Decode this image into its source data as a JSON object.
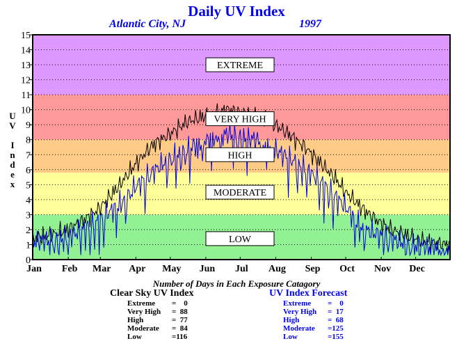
{
  "title": "Daily UV Index",
  "location": "Atlantic City, NJ",
  "year": "1997",
  "y_axis_label": "UV Index",
  "chart_data": {
    "type": "line",
    "y_range": [
      0,
      15
    ],
    "y_ticks": [
      "0",
      "1",
      "2",
      "3",
      "4",
      "5",
      "6",
      "7",
      "8",
      "9",
      "10",
      "11",
      "12",
      "13",
      "14",
      "15"
    ],
    "x_range_days": [
      1,
      365
    ],
    "x_ticks": [
      "Jan",
      "Feb",
      "Mar",
      "Apr",
      "May",
      "Jun",
      "Jul",
      "Aug",
      "Sep",
      "Oct",
      "Nov",
      "Dec"
    ],
    "grid": true,
    "bands": [
      {
        "label": "LOW",
        "from": 0,
        "to": 3,
        "color": "#92f192"
      },
      {
        "label": "MODERATE",
        "from": 3,
        "to": 5.8,
        "color": "#ffff99"
      },
      {
        "label": "HIGH",
        "from": 5.8,
        "to": 8,
        "color": "#ffcc88"
      },
      {
        "label": "VERY HIGH",
        "from": 8,
        "to": 11,
        "color": "#ff9999"
      },
      {
        "label": "EXTREME",
        "from": 11,
        "to": 15,
        "color": "#dd99ff"
      }
    ],
    "series": [
      {
        "name": "Clear Sky UV Index",
        "color": "#000000",
        "keypoints": [
          [
            1,
            1.4
          ],
          [
            15,
            1.6
          ],
          [
            31,
            2.0
          ],
          [
            45,
            2.6
          ],
          [
            59,
            3.4
          ],
          [
            75,
            4.8
          ],
          [
            90,
            6.3
          ],
          [
            105,
            7.6
          ],
          [
            121,
            8.4
          ],
          [
            136,
            9.2
          ],
          [
            152,
            9.6
          ],
          [
            165,
            9.9
          ],
          [
            172,
            10.0
          ],
          [
            182,
            9.8
          ],
          [
            196,
            9.5
          ],
          [
            210,
            9.1
          ],
          [
            224,
            8.4
          ],
          [
            240,
            7.4
          ],
          [
            255,
            6.2
          ],
          [
            265,
            5.4
          ],
          [
            274,
            4.5
          ],
          [
            290,
            3.3
          ],
          [
            305,
            2.4
          ],
          [
            320,
            1.8
          ],
          [
            335,
            1.4
          ],
          [
            350,
            1.1
          ],
          [
            365,
            1.0
          ]
        ]
      },
      {
        "name": "UV Index Forecast",
        "color": "#0000dd",
        "keypoints": [
          [
            1,
            1.2
          ],
          [
            15,
            1.3
          ],
          [
            31,
            1.5
          ],
          [
            45,
            2.0
          ],
          [
            59,
            2.6
          ],
          [
            75,
            3.6
          ],
          [
            90,
            4.8
          ],
          [
            105,
            5.8
          ],
          [
            121,
            6.8
          ],
          [
            136,
            7.4
          ],
          [
            152,
            8.0
          ],
          [
            172,
            8.4
          ],
          [
            182,
            8.2
          ],
          [
            196,
            8.0
          ],
          [
            210,
            7.4
          ],
          [
            224,
            6.8
          ],
          [
            240,
            6.0
          ],
          [
            255,
            5.0
          ],
          [
            265,
            4.2
          ],
          [
            274,
            3.5
          ],
          [
            290,
            2.0
          ],
          [
            305,
            1.6
          ],
          [
            320,
            1.2
          ],
          [
            335,
            1.0
          ],
          [
            350,
            0.8
          ],
          [
            365,
            0.7
          ]
        ]
      }
    ]
  },
  "stats": {
    "heading": "Number of Days in Each Exposure Catagory",
    "clear_sky": {
      "title": "Clear Sky UV Index",
      "rows": [
        {
          "label": "Extreme",
          "value": "=    0"
        },
        {
          "label": "Very High",
          "value": "=  88"
        },
        {
          "label": "High",
          "value": "=  77"
        },
        {
          "label": "Moderate",
          "value": "=  84"
        },
        {
          "label": "Low",
          "value": "=116"
        }
      ]
    },
    "forecast": {
      "title": "UV Index Forecast",
      "rows": [
        {
          "label": "Extreme",
          "value": "=    0"
        },
        {
          "label": "Very High",
          "value": "=  17"
        },
        {
          "label": "High",
          "value": "=  68"
        },
        {
          "label": "Moderate",
          "value": "=125"
        },
        {
          "label": "Low",
          "value": "=155"
        }
      ]
    }
  }
}
